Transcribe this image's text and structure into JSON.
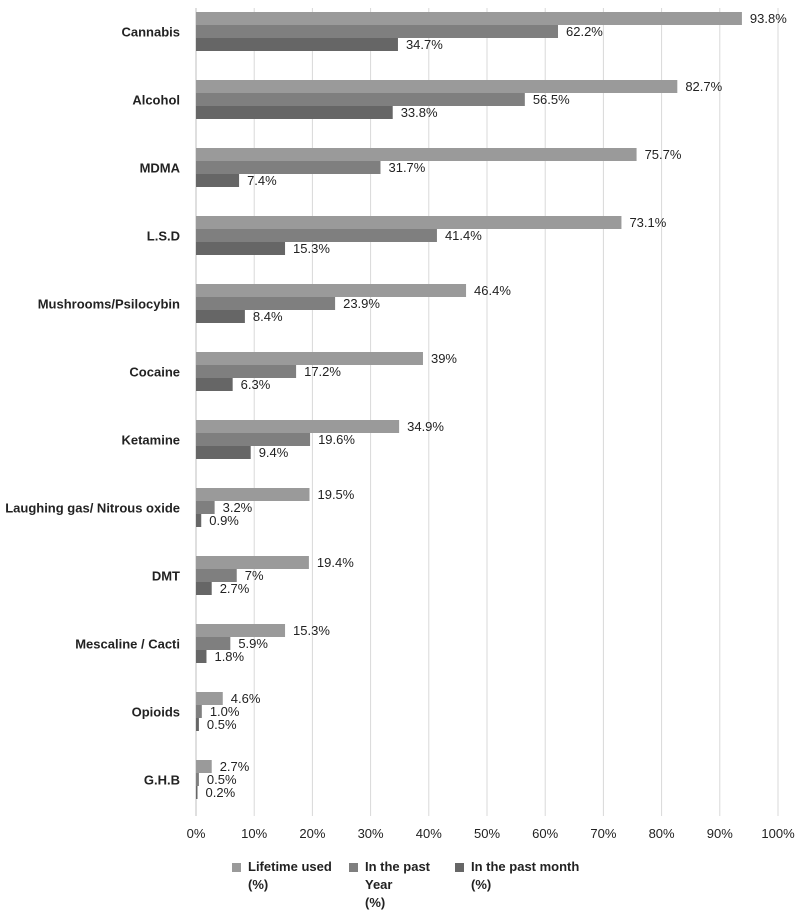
{
  "chart_data": {
    "type": "bar",
    "orientation": "horizontal",
    "categories": [
      "Cannabis",
      "Alcohol",
      "MDMA",
      "L.S.D",
      "Mushrooms/Psilocybin",
      "Cocaine",
      "Ketamine",
      "Laughing gas/ Nitrous oxide",
      "DMT",
      "Mescaline / Cacti",
      "Opioids",
      "G.H.B"
    ],
    "series": [
      {
        "name": "Lifetime used\n(%)",
        "color": "#9a9a9a",
        "values": [
          93.8,
          82.7,
          75.7,
          73.1,
          46.4,
          39,
          34.9,
          19.5,
          19.4,
          15.3,
          4.6,
          2.7
        ],
        "labels": [
          "93.8%",
          "82.7%",
          "75.7%",
          "73.1%",
          "46.4%",
          "39%",
          "34.9%",
          "19.5%",
          "19.4%",
          "15.3%",
          "4.6%",
          "2.7%"
        ]
      },
      {
        "name": "In the past\nYear\n(%)",
        "color": "#7f7f7f",
        "values": [
          62.2,
          56.5,
          31.7,
          41.4,
          23.9,
          17.2,
          19.6,
          3.2,
          7,
          5.9,
          1.0,
          0.5
        ],
        "labels": [
          "62.2%",
          "56.5%",
          "31.7%",
          "41.4%",
          "23.9%",
          "17.2%",
          "19.6%",
          "3.2%",
          "7%",
          "5.9%",
          "1.0%",
          "0.5%"
        ]
      },
      {
        "name": "In the past month\n(%)",
        "color": "#666666",
        "values": [
          34.7,
          33.8,
          7.4,
          15.3,
          8.4,
          6.3,
          9.4,
          0.9,
          2.7,
          1.8,
          0.5,
          0.2
        ],
        "labels": [
          "34.7%",
          "33.8%",
          "7.4%",
          "15.3%",
          "8.4%",
          "6.3%",
          "9.4%",
          "0.9%",
          "2.7%",
          "1.8%",
          "0.5%",
          "0.2%"
        ]
      }
    ],
    "x_ticks": [
      "0%",
      "10%",
      "20%",
      "30%",
      "40%",
      "50%",
      "60%",
      "70%",
      "80%",
      "90%",
      "100%"
    ],
    "xlim": [
      0,
      100
    ],
    "grid": true,
    "legend_position": "bottom"
  }
}
